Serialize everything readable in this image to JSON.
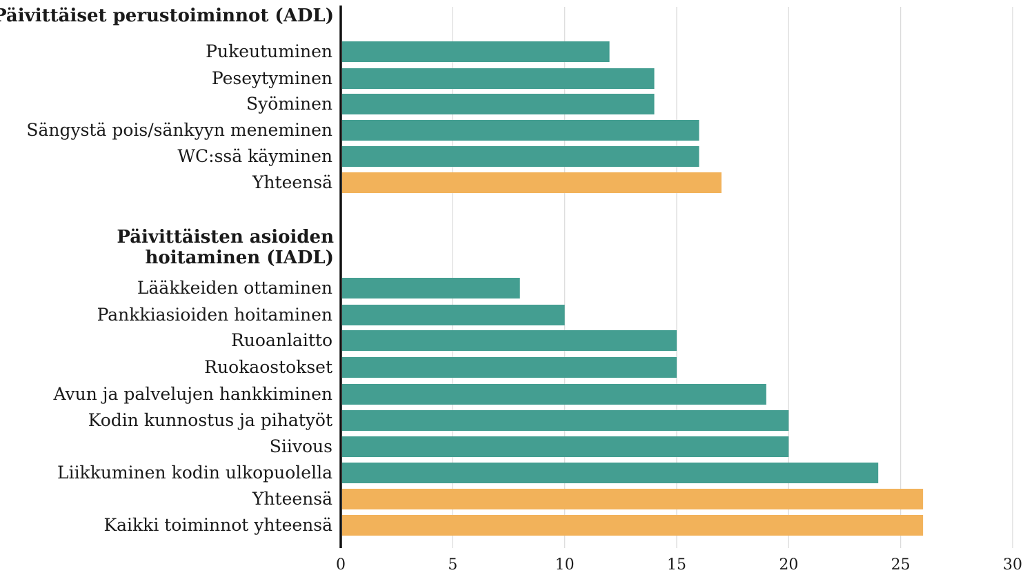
{
  "chart_data": {
    "type": "bar",
    "orientation": "horizontal",
    "title": "",
    "xlabel": "",
    "ylabel": "",
    "xlim": [
      0,
      30
    ],
    "xticks": [
      0,
      5,
      10,
      15,
      20,
      25,
      30
    ],
    "grid": "vertical",
    "legend": "none",
    "colors": {
      "item": "#449e91",
      "total": "#f2b25a"
    },
    "sections": [
      {
        "label_lines": [
          "Päivittäiset perustoiminnot (ADL)"
        ],
        "items": [
          {
            "label": "Pukeutuminen",
            "value": 12,
            "kind": "item"
          },
          {
            "label": "Peseytyminen",
            "value": 14,
            "kind": "item"
          },
          {
            "label": "Syöminen",
            "value": 14,
            "kind": "item"
          },
          {
            "label": "Sängystä pois/sänkyyn meneminen",
            "value": 16,
            "kind": "item"
          },
          {
            "label": "WC:ssä käyminen",
            "value": 16,
            "kind": "item"
          },
          {
            "label": "Yhteensä",
            "value": 17,
            "kind": "total"
          }
        ]
      },
      {
        "label_lines": [
          "Päivittäisten asioiden",
          "hoitaminen (IADL)"
        ],
        "items": [
          {
            "label": "Lääkkeiden ottaminen",
            "value": 8,
            "kind": "item"
          },
          {
            "label": "Pankkiasioiden hoitaminen",
            "value": 10,
            "kind": "item"
          },
          {
            "label": "Ruoanlaitto",
            "value": 15,
            "kind": "item"
          },
          {
            "label": "Ruokaostokset",
            "value": 15,
            "kind": "item"
          },
          {
            "label": "Avun ja palvelujen hankkiminen",
            "value": 19,
            "kind": "item"
          },
          {
            "label": "Kodin kunnostus ja pihatyöt",
            "value": 20,
            "kind": "item"
          },
          {
            "label": "Siivous",
            "value": 20,
            "kind": "item"
          },
          {
            "label": "Liikkuminen kodin ulkopuolella",
            "value": 24,
            "kind": "item"
          },
          {
            "label": "Yhteensä",
            "value": 26,
            "kind": "total"
          },
          {
            "label": "Kaikki toiminnot yhteensä",
            "value": 26,
            "kind": "total"
          }
        ]
      }
    ]
  }
}
